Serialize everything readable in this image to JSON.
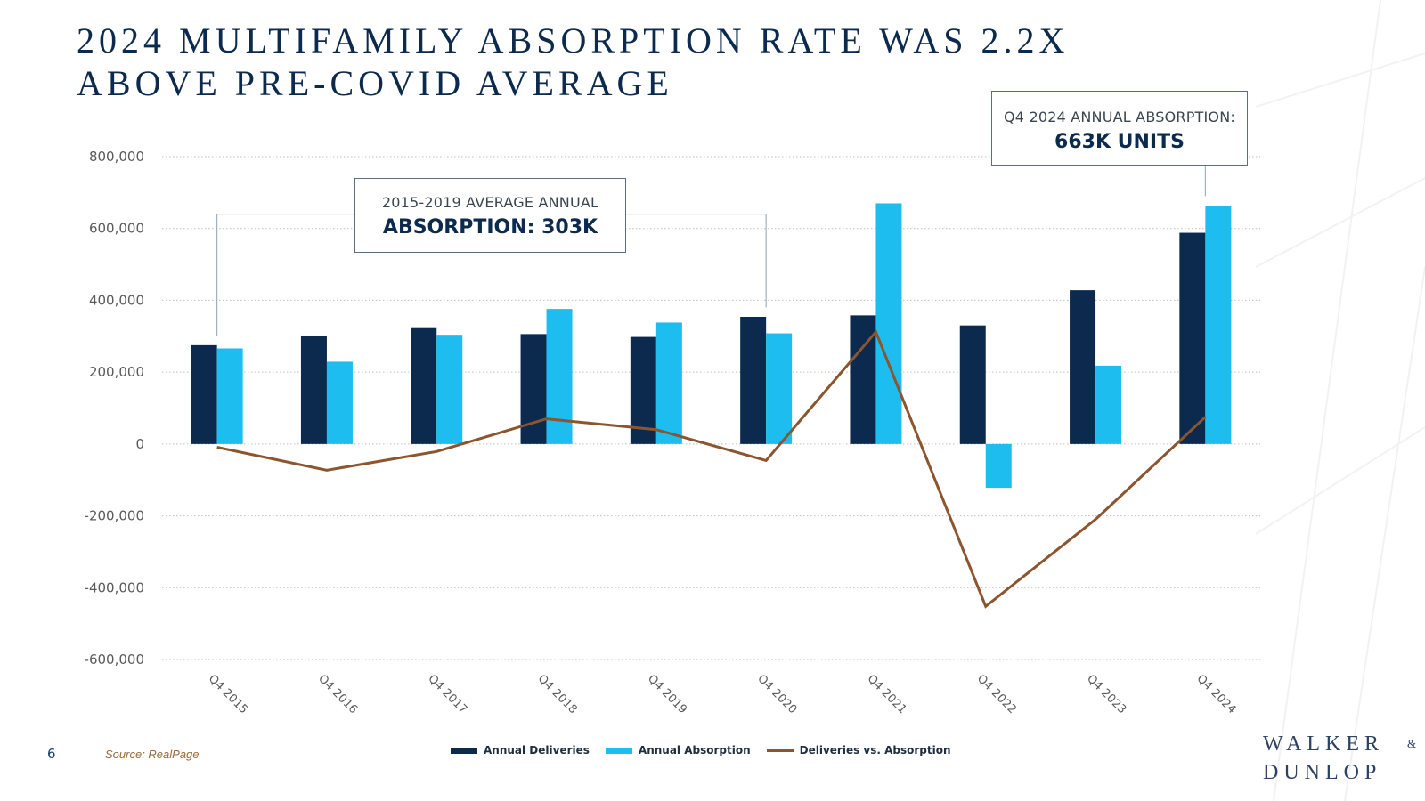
{
  "title": {
    "line1": "2024 MULTIFAMILY ABSORPTION RATE WAS 2.2X",
    "line2": "ABOVE PRE-COVID AVERAGE"
  },
  "callouts": {
    "avg": {
      "line1": "2015-2019 AVERAGE ANNUAL",
      "line2": "ABSORPTION: 303K"
    },
    "q4_2024": {
      "line1": "Q4 2024 ANNUAL ABSORPTION:",
      "line2": "663K UNITS"
    }
  },
  "footer": {
    "page_number": "6",
    "source": "Source: RealPage",
    "logo_line1": "WALKER",
    "logo_amp": "&",
    "logo_line2": "DUNLOP"
  },
  "colors": {
    "deliveries": "#0c2a4d",
    "absorption": "#1dbdf0",
    "line": "#8b5530",
    "grid": "#bfbfbf",
    "axis_text": "#5a5a5a"
  },
  "chart_data": {
    "type": "bar",
    "title": "2024 MULTIFAMILY ABSORPTION RATE WAS 2.2X ABOVE PRE-COVID AVERAGE",
    "xlabel": "",
    "ylabel": "",
    "ylim": [
      -600000,
      800000
    ],
    "yticks": [
      800000,
      600000,
      400000,
      200000,
      0,
      -200000,
      -400000,
      -600000
    ],
    "ytick_labels": [
      "800,000",
      "600,000",
      "400,000",
      "200,000",
      "0",
      "-200,000",
      "-400,000",
      "-600,000"
    ],
    "grid": true,
    "legend_position": "bottom-center",
    "categories": [
      "Q4 2015",
      "Q4 2016",
      "Q4 2017",
      "Q4 2018",
      "Q4 2019",
      "Q4 2020",
      "Q4 2021",
      "Q4 2022",
      "Q4 2023",
      "Q4 2024"
    ],
    "series": [
      {
        "name": "Annual Deliveries",
        "type": "bar",
        "values": [
          275000,
          302000,
          325000,
          306000,
          298000,
          354000,
          358000,
          330000,
          428000,
          588000
        ]
      },
      {
        "name": "Annual Absorption",
        "type": "bar",
        "values": [
          266000,
          229000,
          304000,
          376000,
          338000,
          308000,
          670000,
          -122000,
          218000,
          663000
        ]
      },
      {
        "name": "Deliveries vs. Absorption",
        "type": "line",
        "values": [
          -9000,
          -73000,
          -21000,
          70000,
          40000,
          -46000,
          312000,
          -452000,
          -210000,
          75000
        ]
      }
    ]
  }
}
